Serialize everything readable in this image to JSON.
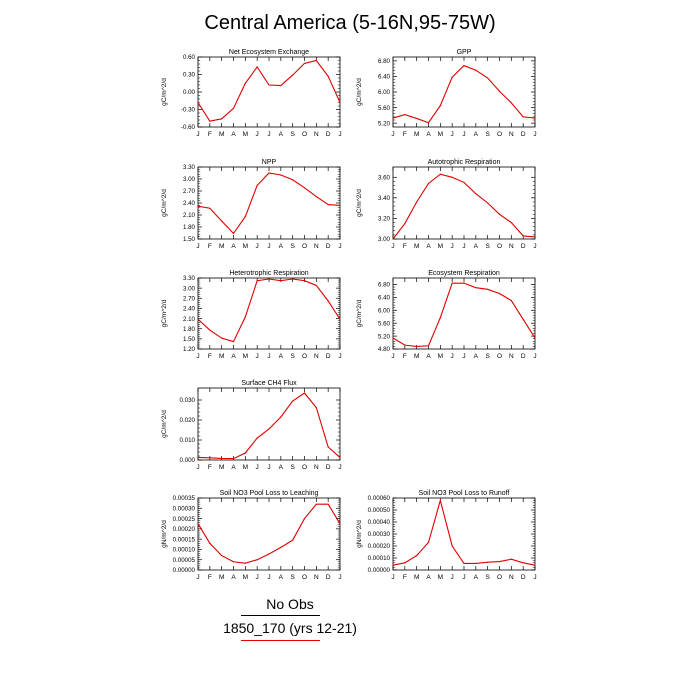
{
  "title": "Central America (5-16N,95-75W)",
  "months": [
    "J",
    "F",
    "M",
    "A",
    "M",
    "J",
    "J",
    "A",
    "S",
    "O",
    "N",
    "D",
    "J"
  ],
  "legend": {
    "obs_label": "No Obs",
    "obs_color": "#000000",
    "model_label": "1850_170 (yrs 12-21)",
    "model_color": "#e00000"
  },
  "chart_data": [
    {
      "type": "line",
      "title": "Net Ecosystem Exchange",
      "ylabel": "gC/m^2/d",
      "ylim": [
        -0.6,
        0.6
      ],
      "yticks": [
        "-0.60",
        "-0.30",
        "0.00",
        "0.30",
        "0.60"
      ],
      "y": [
        -0.18,
        -0.5,
        -0.46,
        -0.28,
        0.15,
        0.43,
        0.12,
        0.11,
        0.29,
        0.49,
        0.54,
        0.27,
        -0.18
      ]
    },
    {
      "type": "line",
      "title": "GPP",
      "ylabel": "gC/m^2/d",
      "ylim": [
        5.1,
        6.9
      ],
      "yticks": [
        "5.20",
        "5.60",
        "6.00",
        "6.40",
        "6.80"
      ],
      "y": [
        5.33,
        5.42,
        5.32,
        5.21,
        5.65,
        6.38,
        6.68,
        6.56,
        6.36,
        6.02,
        5.72,
        5.36,
        5.33
      ]
    },
    {
      "type": "line",
      "title": "NPP",
      "ylabel": "gC/m^2/d",
      "ylim": [
        1.5,
        3.3
      ],
      "yticks": [
        "1.50",
        "1.80",
        "2.10",
        "2.40",
        "2.70",
        "3.00",
        "3.30"
      ],
      "y": [
        2.32,
        2.27,
        1.95,
        1.64,
        2.06,
        2.84,
        3.15,
        3.1,
        2.98,
        2.78,
        2.56,
        2.36,
        2.34
      ]
    },
    {
      "type": "line",
      "title": "Autotrophic Respiration",
      "ylabel": "gC/m^2/d",
      "ylim": [
        3.0,
        3.7
      ],
      "yticks": [
        "3.00",
        "3.20",
        "3.40",
        "3.60"
      ],
      "y": [
        3.0,
        3.15,
        3.36,
        3.54,
        3.63,
        3.6,
        3.55,
        3.44,
        3.35,
        3.24,
        3.16,
        3.03,
        3.02
      ]
    },
    {
      "type": "line",
      "title": "Heterotrophic Respiration",
      "ylabel": "gC/m^2/d",
      "ylim": [
        1.2,
        3.3
      ],
      "yticks": [
        "1.20",
        "1.50",
        "1.80",
        "2.10",
        "2.40",
        "2.70",
        "3.00",
        "3.30"
      ],
      "y": [
        2.08,
        1.76,
        1.52,
        1.42,
        2.15,
        3.22,
        3.27,
        3.22,
        3.27,
        3.22,
        3.08,
        2.62,
        2.08
      ]
    },
    {
      "type": "line",
      "title": "Ecosystem Respiration",
      "ylabel": "gC/m^2/d",
      "ylim": [
        4.8,
        7.0
      ],
      "yticks": [
        "4.80",
        "5.20",
        "5.60",
        "6.00",
        "6.40",
        "6.80"
      ],
      "y": [
        5.14,
        4.92,
        4.88,
        4.9,
        5.77,
        6.84,
        6.84,
        6.7,
        6.65,
        6.52,
        6.3,
        5.72,
        5.14
      ]
    },
    {
      "type": "line",
      "title": "Surface CH4 Flux",
      "ylabel": "gC/m^2/d",
      "ylim": [
        0.0,
        0.036
      ],
      "yticks": [
        "0.000",
        "0.010",
        "0.020",
        "0.030"
      ],
      "y": [
        0.0013,
        0.0011,
        0.0008,
        0.0007,
        0.0035,
        0.011,
        0.0155,
        0.0215,
        0.0295,
        0.0335,
        0.0262,
        0.0065,
        0.0013
      ]
    },
    {
      "type": "line",
      "title": "Soil NO3 Pool Loss to Leaching",
      "ylabel": "gN/m^2/d",
      "ylim": [
        0.0,
        0.00035
      ],
      "yticks": [
        "0.00000",
        "0.00005",
        "0.00010",
        "0.00015",
        "0.00020",
        "0.00025",
        "0.00030",
        "0.00035"
      ],
      "y": [
        0.000225,
        0.00013,
        7e-05,
        4e-05,
        3.3e-05,
        5e-05,
        7.8e-05,
        0.00011,
        0.000145,
        0.00025,
        0.00032,
        0.00032,
        0.000225
      ]
    },
    {
      "type": "line",
      "title": "Soil NO3 Pool Loss to Runoff",
      "ylabel": "gN/m^2/d",
      "ylim": [
        0.0,
        0.0006
      ],
      "yticks": [
        "0.00000",
        "0.00010",
        "0.00020",
        "0.00030",
        "0.00040",
        "0.00050",
        "0.00060"
      ],
      "y": [
        4e-05,
        6e-05,
        0.00012,
        0.00023,
        0.00058,
        0.0002,
        5.5e-05,
        5.5e-05,
        6.5e-05,
        7e-05,
        9e-05,
        6e-05,
        4e-05
      ]
    }
  ]
}
